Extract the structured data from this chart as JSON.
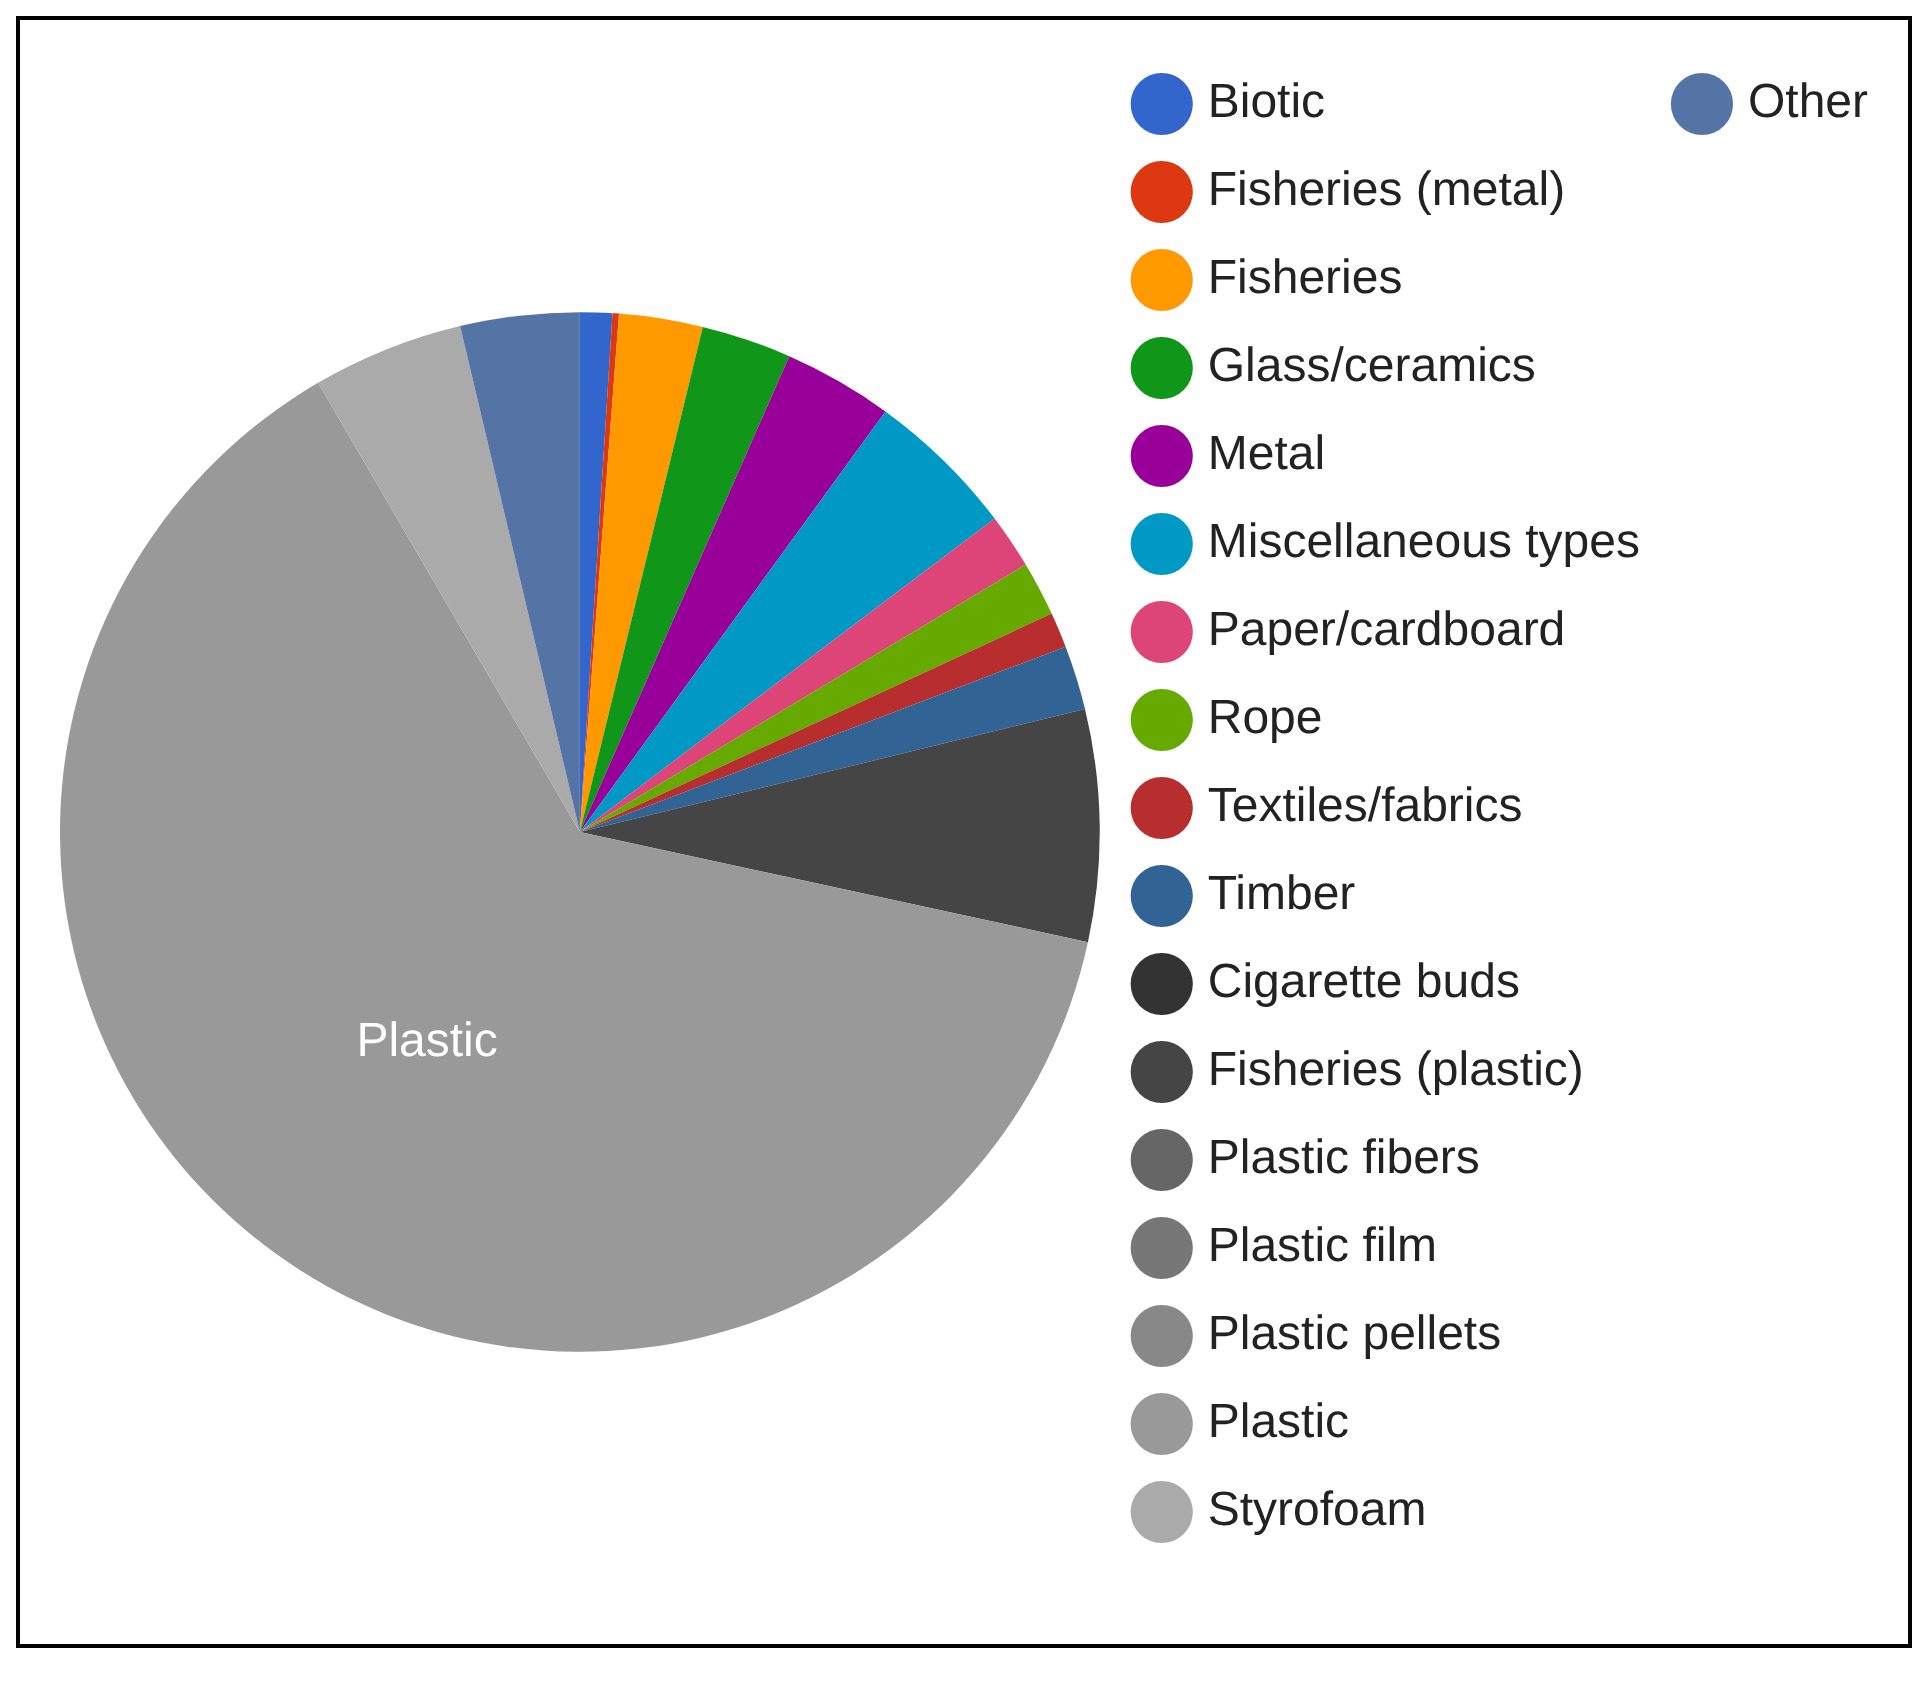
{
  "chart_data": {
    "type": "pie",
    "legend": "right",
    "categories": [
      "Biotic",
      "Fisheries (metal)",
      "Fisheries",
      "Glass/ceramics",
      "Metal",
      "Miscellaneous types",
      "Paper/cardboard",
      "Rope",
      "Textiles/fabrics",
      "Timber",
      "Cigarette buds",
      "Fisheries (plastic)",
      "Plastic fibers",
      "Plastic film",
      "Plastic pellets",
      "Plastic",
      "Styrofoam",
      "Other"
    ],
    "values": [
      1,
      0.2,
      2.6,
      2.8,
      3.4,
      4.7,
      1.7,
      1.7,
      1.1,
      2,
      0,
      7.2,
      0,
      0,
      0,
      63.2,
      4.7,
      3.7
    ],
    "colors": [
      "#3366cc",
      "#dc3912",
      "#ff9900",
      "#109618",
      "#990099",
      "#0099c6",
      "#dd4477",
      "#66aa00",
      "#b82e2e",
      "#316395",
      "#333333",
      "#454545",
      "#666666",
      "#777777",
      "#888888",
      "#999999",
      "#aaaaaa",
      "#5574a6"
    ],
    "annotations": [
      {
        "text": "Plastic",
        "x": "Plastic"
      }
    ]
  }
}
